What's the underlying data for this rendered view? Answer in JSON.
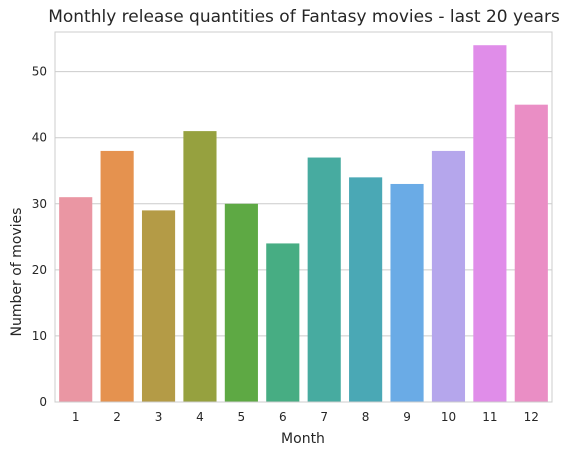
{
  "chart_data": {
    "type": "bar",
    "title": "Monthly release quantities of Fantasy movies - last 20 years",
    "xlabel": "Month",
    "ylabel": "Number of movies",
    "categories": [
      "1",
      "2",
      "3",
      "4",
      "5",
      "6",
      "7",
      "8",
      "9",
      "10",
      "11",
      "12"
    ],
    "values": [
      31,
      38,
      29,
      41,
      30,
      24,
      37,
      34,
      33,
      38,
      54,
      45
    ],
    "colors": [
      "#ea96a3",
      "#e5924f",
      "#b49b46",
      "#96a13f",
      "#5ea944",
      "#47ad83",
      "#47aba0",
      "#4aa8b5",
      "#6aabe6",
      "#b5a6ec",
      "#e08de9",
      "#ea8ec5"
    ],
    "ylim": [
      0,
      56
    ],
    "yticks": [
      0,
      10,
      20,
      30,
      40,
      50
    ],
    "grid": "y",
    "legend": "none"
  }
}
